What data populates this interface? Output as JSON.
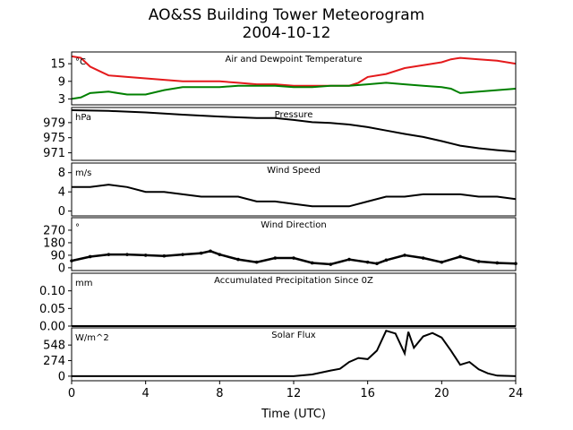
{
  "figure": {
    "title_line1": "AO&SS Building Tower Meteorogram",
    "title_line2": "2004-10-12",
    "xlabel": "Time (UTC)"
  },
  "chart_data": [
    {
      "type": "line",
      "title": "Air and Dewpoint Temperature",
      "unit": "°C",
      "xlim": [
        0,
        24
      ],
      "ylim": [
        1,
        19
      ],
      "yticks": [
        3,
        9,
        15
      ],
      "series": [
        {
          "color": "#e41a1c",
          "x": [
            0,
            0.5,
            1,
            1.5,
            2,
            3,
            4,
            5,
            6,
            7,
            8,
            9,
            10,
            11,
            12,
            13,
            14,
            15,
            15.5,
            16,
            17,
            18,
            19,
            20,
            20.5,
            21,
            22,
            23,
            24
          ],
          "y": [
            17.5,
            17,
            14,
            12.5,
            11,
            10.5,
            10,
            9.5,
            9,
            9,
            9,
            8.5,
            8,
            8,
            7.5,
            7.5,
            7.5,
            7.5,
            8.5,
            10.5,
            11.5,
            13.5,
            14.5,
            15.5,
            16.5,
            17,
            16.5,
            16,
            15
          ]
        },
        {
          "color": "#008000",
          "x": [
            0,
            0.5,
            1,
            2,
            3,
            4,
            5,
            6,
            7,
            8,
            9,
            10,
            11,
            12,
            13,
            14,
            15,
            16,
            17,
            18,
            19,
            20,
            20.5,
            21,
            22,
            23,
            24
          ],
          "y": [
            3,
            3.5,
            5,
            5.5,
            4.5,
            4.5,
            6,
            7,
            7,
            7,
            7.5,
            7.5,
            7.5,
            7,
            7,
            7.5,
            7.5,
            8,
            8.5,
            8,
            7.5,
            7,
            6.5,
            5,
            5.5,
            6,
            6.5
          ]
        }
      ]
    },
    {
      "type": "line",
      "title": "Pressure",
      "unit": "hPa",
      "xlim": [
        0,
        24
      ],
      "ylim": [
        969,
        983
      ],
      "yticks": [
        971,
        975,
        979
      ],
      "series": [
        {
          "color": "#000000",
          "x": [
            0,
            2,
            4,
            6,
            8,
            10,
            11,
            12,
            13,
            14,
            15,
            16,
            17,
            18,
            19,
            20,
            21,
            22,
            23,
            24
          ],
          "y": [
            982.3,
            982.1,
            981.7,
            981.1,
            980.6,
            980.2,
            980.2,
            979.7,
            979.1,
            978.9,
            978.5,
            977.8,
            976.9,
            976,
            975.2,
            974.1,
            972.9,
            972.2,
            971.7,
            971.3
          ]
        }
      ]
    },
    {
      "type": "line",
      "title": "Wind Speed",
      "unit": "m/s",
      "xlim": [
        0,
        24
      ],
      "ylim": [
        -1,
        10
      ],
      "yticks": [
        0,
        4,
        8
      ],
      "series": [
        {
          "color": "#000000",
          "x": [
            0,
            1,
            2,
            3,
            4,
            5,
            6,
            7,
            8,
            9,
            10,
            11,
            12,
            13,
            14,
            15,
            16,
            17,
            18,
            19,
            20,
            21,
            22,
            23,
            24
          ],
          "y": [
            5,
            5,
            5.5,
            5,
            4,
            4,
            3.5,
            3,
            3,
            3,
            2,
            2,
            1.5,
            1,
            1,
            1,
            2,
            3,
            3,
            3.5,
            3.5,
            3.5,
            3,
            3,
            2.5
          ]
        }
      ]
    },
    {
      "type": "scatter",
      "title": "Wind Direction",
      "unit": "°",
      "xlim": [
        0,
        24
      ],
      "ylim": [
        -20,
        360
      ],
      "yticks": [
        0,
        90,
        180,
        270
      ],
      "series": [
        {
          "color": "#000000",
          "x": [
            0,
            1,
            2,
            3,
            4,
            5,
            6,
            7,
            7.5,
            8,
            9,
            10,
            11,
            12,
            13,
            14,
            15,
            16,
            16.5,
            17,
            18,
            19,
            20,
            21,
            22,
            23,
            24
          ],
          "y": [
            50,
            80,
            95,
            95,
            90,
            85,
            95,
            105,
            120,
            95,
            60,
            40,
            70,
            70,
            35,
            25,
            60,
            40,
            30,
            55,
            90,
            70,
            40,
            80,
            45,
            35,
            30
          ]
        }
      ]
    },
    {
      "type": "line",
      "title": "Accumulated Precipitation Since 0Z",
      "unit": "mm",
      "xlim": [
        0,
        24
      ],
      "ylim": [
        0,
        0.15
      ],
      "yticks": [
        0.0,
        0.05,
        0.1
      ],
      "ytick_labels": [
        "0.00",
        "0.05",
        "0.10"
      ],
      "series": [
        {
          "color": "#000000",
          "x": [
            0,
            24
          ],
          "y": [
            0,
            0
          ]
        }
      ]
    },
    {
      "type": "line",
      "title": "Solar Flux",
      "unit": "W/m^2",
      "xlim": [
        0,
        24
      ],
      "ylim": [
        -80,
        850
      ],
      "yticks": [
        0,
        274,
        548
      ],
      "series": [
        {
          "color": "#000000",
          "x": [
            0,
            12,
            13,
            14,
            14.5,
            15,
            15.5,
            16,
            16.5,
            17,
            17.5,
            18,
            18.2,
            18.5,
            19,
            19.5,
            20,
            20.5,
            21,
            21.5,
            22,
            22.5,
            23,
            24
          ],
          "y": [
            0,
            0,
            30,
            100,
            130,
            250,
            320,
            300,
            450,
            800,
            750,
            400,
            780,
            500,
            700,
            760,
            680,
            450,
            200,
            250,
            120,
            50,
            10,
            0
          ]
        }
      ]
    }
  ]
}
